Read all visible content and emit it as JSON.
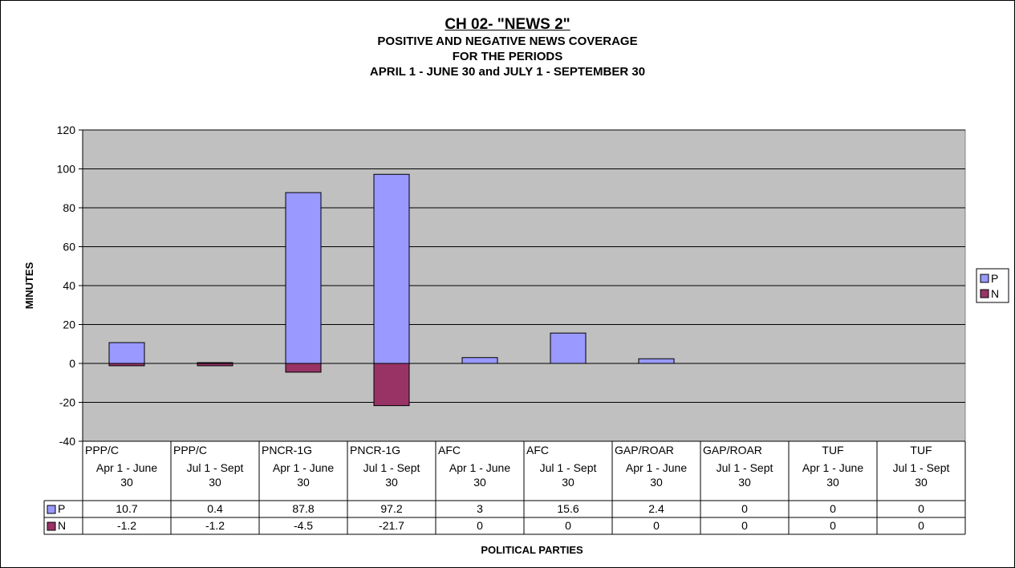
{
  "chart_data": {
    "type": "bar",
    "title": "CH 02- \"NEWS 2\"",
    "subtitle_lines": [
      "POSITIVE AND NEGATIVE NEWS COVERAGE",
      "FOR THE PERIODS",
      "APRIL 1 - JUNE 30 and JULY 1 - SEPTEMBER 30"
    ],
    "xlabel": "POLITICAL PARTIES",
    "ylabel": "MINUTES",
    "ylim": [
      -40,
      120
    ],
    "yticks": [
      120,
      100,
      80,
      60,
      40,
      20,
      0,
      -20,
      -40
    ],
    "grid": true,
    "legend_position": "right",
    "categories": [
      {
        "party": "PPP/C",
        "period": "Apr 1 - June 30"
      },
      {
        "party": "PPP/C",
        "period": "Jul 1 - Sept 30"
      },
      {
        "party": "PNCR-1G",
        "period": "Apr 1 - June 30"
      },
      {
        "party": "PNCR-1G",
        "period": "Jul 1 - Sept 30"
      },
      {
        "party": "AFC",
        "period": "Apr 1 - June 30"
      },
      {
        "party": "AFC",
        "period": "Jul 1 - Sept 30"
      },
      {
        "party": "GAP/ROAR",
        "period": "Apr 1 - June 30"
      },
      {
        "party": "GAP/ROAR",
        "period": "Jul 1 - Sept 30"
      },
      {
        "party": "TUF",
        "period": "Apr 1 - June 30"
      },
      {
        "party": "TUF",
        "period": "Jul 1 - Sept 30"
      }
    ],
    "series": [
      {
        "name": "P",
        "color": "#9999ff",
        "values": [
          10.7,
          0.4,
          87.8,
          97.2,
          3,
          15.6,
          2.4,
          0,
          0,
          0
        ]
      },
      {
        "name": "N",
        "color": "#993366",
        "values": [
          -1.2,
          -1.2,
          -4.5,
          -21.7,
          0,
          0,
          0,
          0,
          0,
          0
        ]
      }
    ],
    "colors": {
      "plot_background": "#c0c0c0",
      "gridline": "#000000"
    }
  }
}
